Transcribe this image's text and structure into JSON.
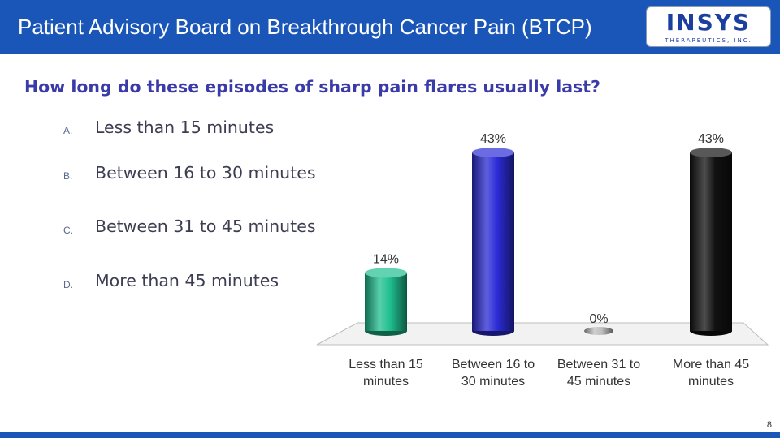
{
  "header": {
    "title": "Patient Advisory Board on Breakthrough Cancer Pain (BTCP)"
  },
  "logo": {
    "text": "INSYS",
    "subtext": "THERAPEUTICS, INC."
  },
  "question": "How long do these episodes of sharp pain flares usually last?",
  "options": [
    {
      "letter": "A.",
      "text": "Less than 15 minutes"
    },
    {
      "letter": "B.",
      "text": "Between 16 to 30 minutes"
    },
    {
      "letter": "C.",
      "text": "Between 31 to 45 minutes"
    },
    {
      "letter": "D.",
      "text": "More than 45 minutes"
    }
  ],
  "chart_data": {
    "type": "bar",
    "categories": [
      [
        "Less than 15",
        "minutes"
      ],
      [
        "Between 16 to",
        "30 minutes"
      ],
      [
        "Between 31 to",
        "45 minutes"
      ],
      [
        "More than 45",
        "minutes"
      ]
    ],
    "values": [
      14,
      43,
      0,
      43
    ],
    "data_labels": [
      "14%",
      "43%",
      "0%",
      "43%"
    ],
    "colors": [
      "#1fbf8f",
      "#2b2bd6",
      "#bfbfbf",
      "#111111"
    ],
    "ylim": [
      0,
      43
    ],
    "style": "3d-cylinder",
    "grid": false,
    "legend": false
  },
  "page_number": "8"
}
